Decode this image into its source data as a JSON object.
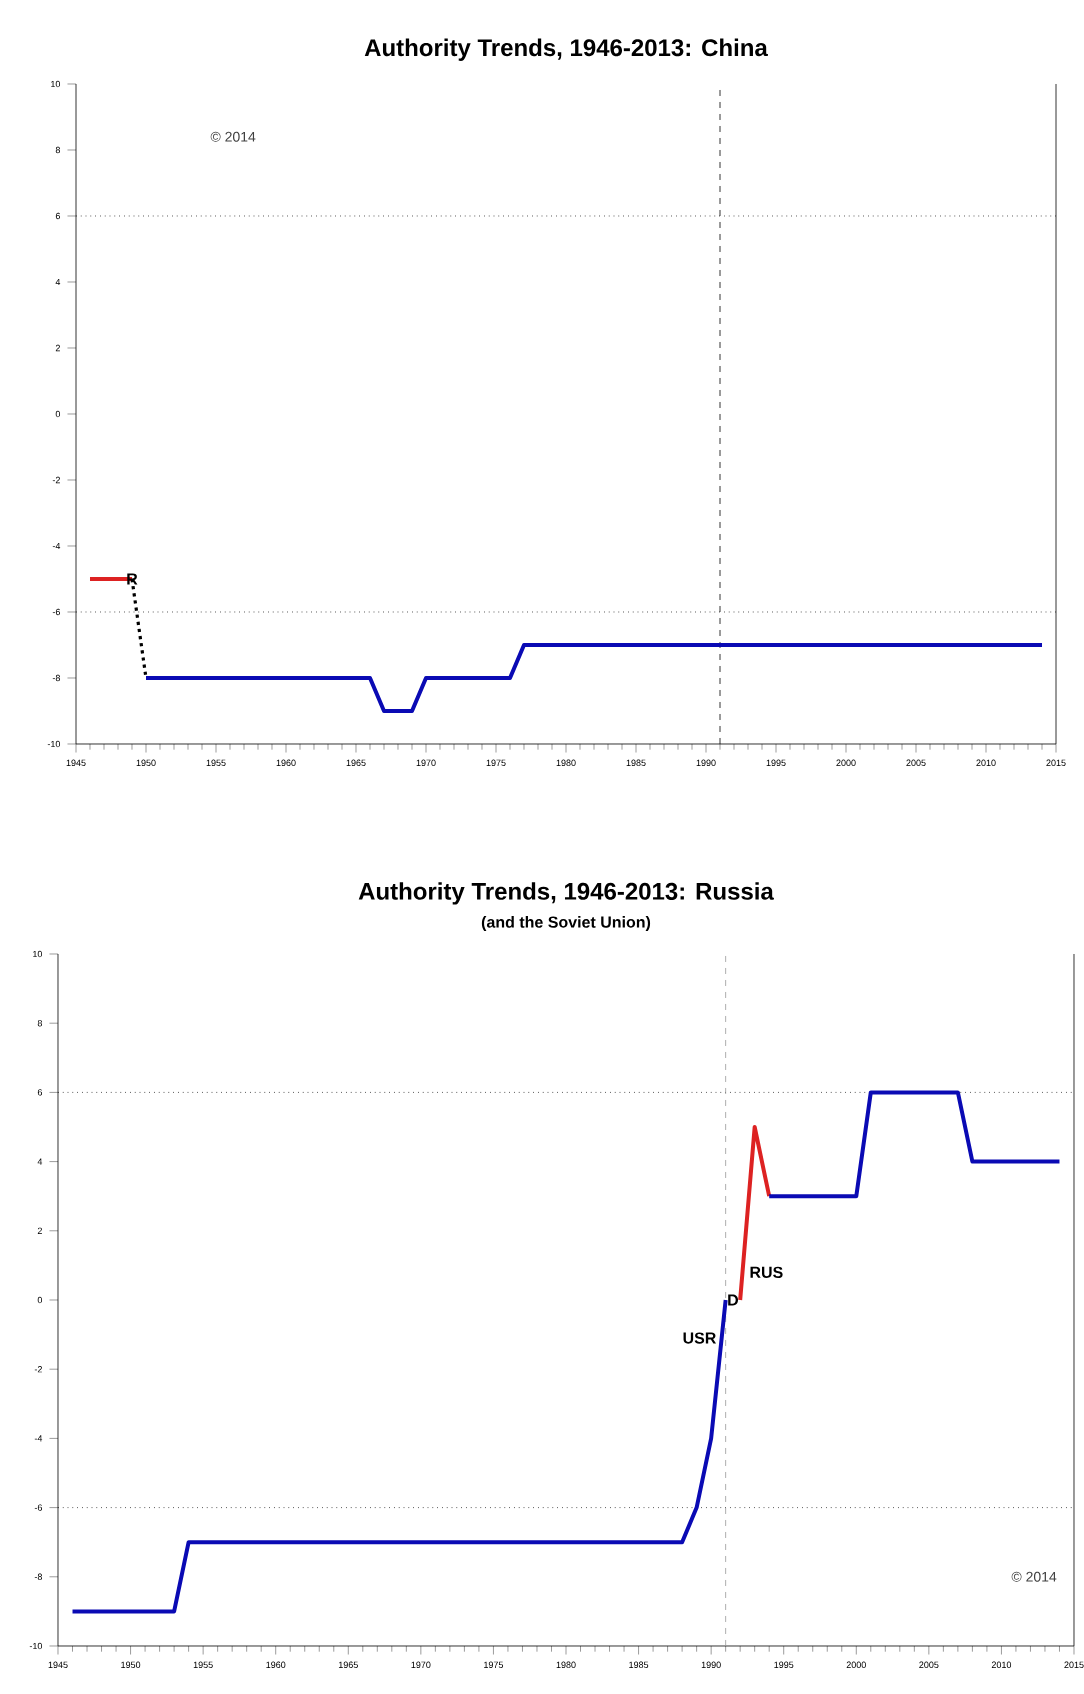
{
  "chart_data": [
    {
      "type": "line",
      "title": "Authority Trends, 1946-2013: China",
      "series": [
        {
          "color": "#dd2222",
          "x": [
            1946,
            1949
          ],
          "values": [
            -5,
            -5
          ]
        },
        {
          "color": "#000000",
          "line_style": "dotted",
          "x": [
            1949,
            1950
          ],
          "values": [
            -5,
            -8
          ]
        },
        {
          "color": "#0a0ab4",
          "x": [
            1950,
            1966,
            1967,
            1969,
            1970,
            1976,
            1977,
            2014
          ],
          "values": [
            -8,
            -8,
            -9,
            -9,
            -8,
            -8,
            -7,
            -7
          ]
        }
      ],
      "xlim": [
        1945,
        2015
      ],
      "xticks": [
        1945,
        1950,
        1955,
        1960,
        1965,
        1970,
        1975,
        1980,
        1985,
        1990,
        1995,
        2000,
        2005,
        2010,
        2015
      ],
      "ylim": [
        -10,
        10
      ],
      "yticks": [
        -10,
        -8,
        -6,
        -4,
        -2,
        0,
        2,
        4,
        6,
        8,
        10
      ],
      "ref_lines": [
        {
          "axis": "y",
          "value": 6,
          "line_style": "dotted",
          "color": "#000000"
        },
        {
          "axis": "y",
          "value": -6,
          "line_style": "dotted",
          "color": "#000000"
        },
        {
          "axis": "x",
          "value": 1991,
          "line_style": "dashed",
          "color": "#000000"
        }
      ],
      "annotations": [
        "© 2014",
        {
          "text": "R",
          "x": 1949,
          "y": -5
        }
      ]
    },
    {
      "type": "line",
      "title": "Authority Trends, 1946-2013: Russia",
      "subtitle": "(and the Soviet Union)",
      "series": [
        {
          "color": "#0a0ab4",
          "x": [
            1946,
            1953,
            1954,
            1988,
            1989,
            1990,
            1991
          ],
          "values": [
            -9,
            -9,
            -7,
            -7,
            -6,
            -4,
            0
          ]
        },
        {
          "color": "#dd2222",
          "x": [
            1992,
            1993,
            1994
          ],
          "values": [
            0,
            5,
            3
          ]
        },
        {
          "color": "#0a0ab4",
          "x": [
            1994,
            2000,
            2001,
            2007,
            2008,
            2014
          ],
          "values": [
            3,
            3,
            6,
            6,
            4,
            4
          ]
        }
      ],
      "xlim": [
        1945,
        2015
      ],
      "xticks": [
        1945,
        1950,
        1955,
        1960,
        1965,
        1970,
        1975,
        1980,
        1985,
        1990,
        1995,
        2000,
        2005,
        2010,
        2015
      ],
      "ylim": [
        -10,
        10
      ],
      "yticks": [
        -10,
        -8,
        -6,
        -4,
        -2,
        0,
        2,
        4,
        6,
        8,
        10
      ],
      "ref_lines": [
        {
          "axis": "y",
          "value": 6,
          "line_style": "dotted",
          "color": "#000000"
        },
        {
          "axis": "y",
          "value": -6,
          "line_style": "dotted",
          "color": "#000000"
        },
        {
          "axis": "x",
          "value": 1991,
          "line_style": "dashed",
          "color": "#999999"
        }
      ],
      "annotations": [
        "© 2014",
        {
          "text": "D",
          "x": 1991.5,
          "y": 0
        },
        {
          "text": "USR",
          "x": 1990.8,
          "y": -1.1
        },
        {
          "text": "RUS",
          "x": 1992.2,
          "y": 0.8
        }
      ]
    }
  ]
}
